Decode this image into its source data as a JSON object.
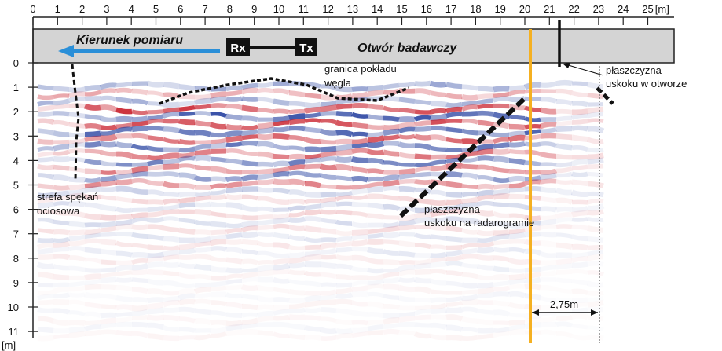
{
  "axes": {
    "x_ticks": [
      "0",
      "1",
      "2",
      "3",
      "4",
      "5",
      "6",
      "7",
      "8",
      "9",
      "10",
      "11",
      "12",
      "13",
      "14",
      "15",
      "16",
      "17",
      "18",
      "19",
      "20",
      "21",
      "22",
      "23",
      "24",
      "25"
    ],
    "x_unit": "[m]",
    "y_ticks": [
      "0",
      "1",
      "2",
      "3",
      "4",
      "5",
      "6",
      "7",
      "8",
      "9",
      "10",
      "11"
    ],
    "y_unit": "[m]"
  },
  "header_band": {
    "direction_label": "Kierunek pomiaru",
    "receiver": "Rx",
    "transmitter": "Tx",
    "borehole_label": "Otwór badawczy"
  },
  "annotations": {
    "coal_boundary": [
      "granica pokładu",
      "węgla"
    ],
    "fault_in_borehole": [
      "płaszczyzna",
      "uskoku w otworze"
    ],
    "fracture_zone": [
      "strefa spękań",
      "ociosowa"
    ],
    "fault_on_radargram": [
      "płaszczyzna",
      "uskoku na radarogramie"
    ],
    "distance": "2,75m"
  }
}
